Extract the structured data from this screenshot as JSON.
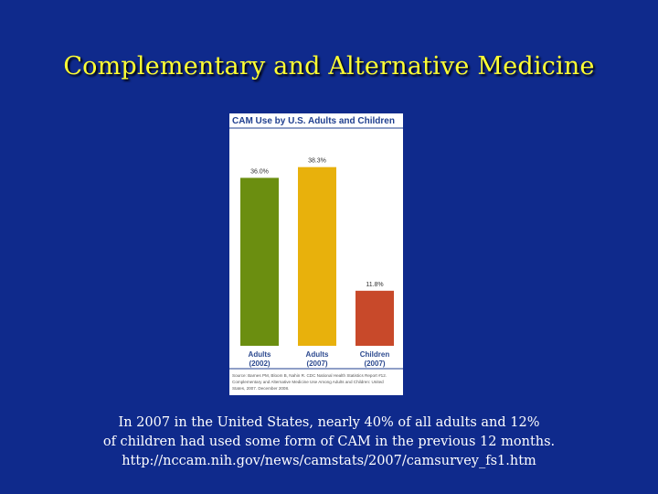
{
  "slide": {
    "title": "Complementary and Alternative Medicine",
    "caption_lines": [
      "In 2007 in the United States, nearly 40% of all adults  and 12%",
      "of children had used some form of CAM in the previous 12 months.",
      "http://nccam.nih.gov/news/camstats/2007/camsurvey_fs1.htm"
    ]
  },
  "chart_data": {
    "type": "bar",
    "title": "CAM Use by U.S. Adults and Children",
    "categories": [
      "Adults (2002)",
      "Adults (2007)",
      "Children (2007)"
    ],
    "category_lines": [
      [
        "Adults",
        "(2002)"
      ],
      [
        "Adults",
        "(2007)"
      ],
      [
        "Children",
        "(2007)"
      ]
    ],
    "values": [
      36.0,
      38.3,
      11.8
    ],
    "value_labels": [
      "36.0%",
      "38.3%",
      "11.8%"
    ],
    "bar_colors": [
      "#6b8e10",
      "#e8b10c",
      "#c8492a"
    ],
    "title_color": "#1f3f8f",
    "label_color": "#2d4a8f",
    "ylim": [
      0,
      40
    ],
    "grid": false,
    "source_lines": [
      "Source: Barnes PM, Bloom B, Nahin R. CDC National Health Statistics Report #12.",
      "Complementary and Alternative Medicine Use Among Adults and Children: United",
      "States, 2007. December 2008."
    ]
  }
}
